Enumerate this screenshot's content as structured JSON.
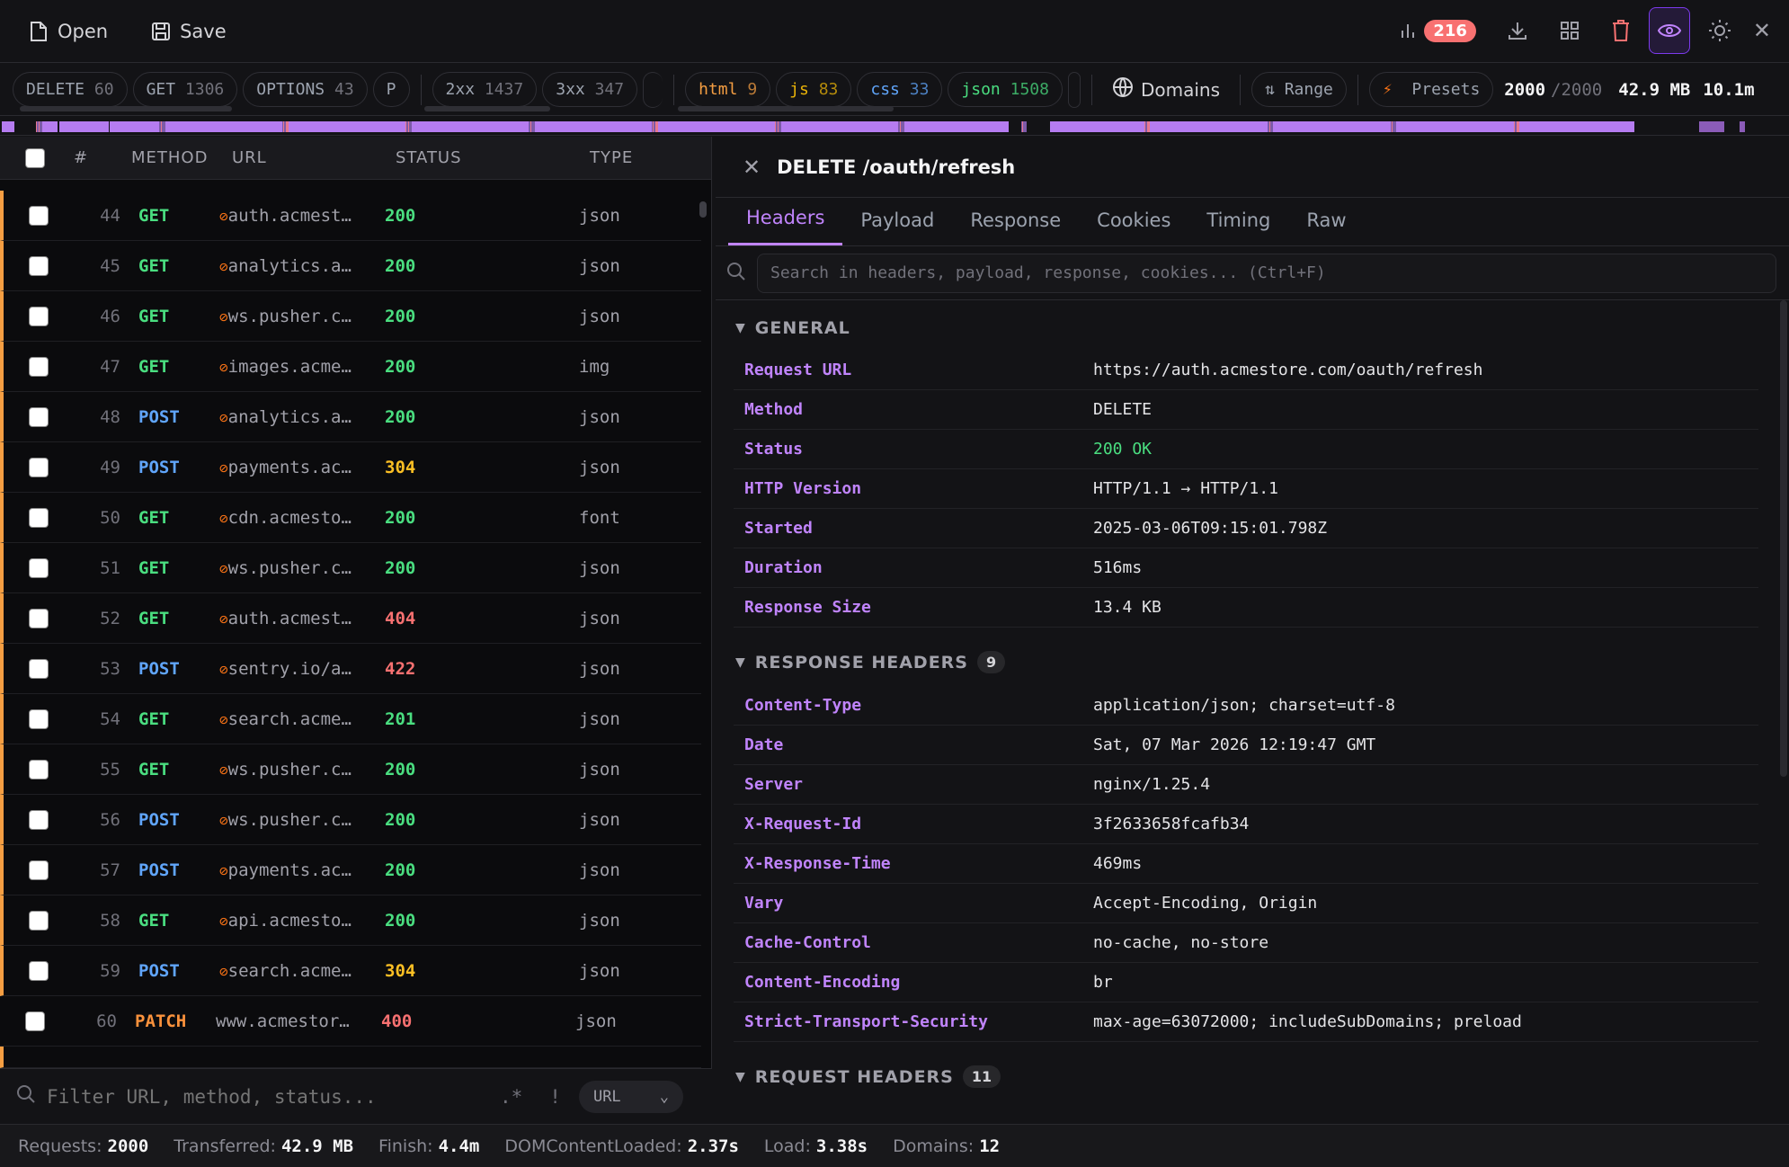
{
  "toolbar": {
    "open": "Open",
    "save": "Save",
    "error_count": "216"
  },
  "filters": {
    "methods": [
      {
        "label": "DELETE",
        "count": "60"
      },
      {
        "label": "GET",
        "count": "1306"
      },
      {
        "label": "OPTIONS",
        "count": "43"
      },
      {
        "label": "P",
        "count": ""
      }
    ],
    "statuses": [
      {
        "label": "2xx",
        "count": "1437"
      },
      {
        "label": "3xx",
        "count": "347"
      }
    ],
    "types": [
      {
        "label": "html",
        "count": "9",
        "color": "#f59e42"
      },
      {
        "label": "js",
        "count": "83",
        "color": "#eab308"
      },
      {
        "label": "css",
        "count": "33",
        "color": "#60a5fa"
      },
      {
        "label": "json",
        "count": "1508",
        "color": "#4ade80"
      }
    ],
    "domains": "Domains",
    "range": "Range",
    "presets": "Presets",
    "shown": "2000",
    "total": "/2000",
    "size": "42.9 MB",
    "time": "10.1m"
  },
  "table": {
    "headers": {
      "num": "#",
      "method": "METHOD",
      "url": "URL",
      "status": "STATUS",
      "type": "TYPE"
    },
    "rows": [
      {
        "num": "44",
        "method": "GET",
        "url": "auth.acmest…",
        "status": "200",
        "type": "json",
        "blocked": true
      },
      {
        "num": "45",
        "method": "GET",
        "url": "analytics.a…",
        "status": "200",
        "type": "json",
        "blocked": true
      },
      {
        "num": "46",
        "method": "GET",
        "url": "ws.pusher.c…",
        "status": "200",
        "type": "json",
        "blocked": true
      },
      {
        "num": "47",
        "method": "GET",
        "url": "images.acme…",
        "status": "200",
        "type": "img",
        "blocked": true
      },
      {
        "num": "48",
        "method": "POST",
        "url": "analytics.a…",
        "status": "200",
        "type": "json",
        "blocked": true
      },
      {
        "num": "49",
        "method": "POST",
        "url": "payments.ac…",
        "status": "304",
        "type": "json",
        "blocked": true
      },
      {
        "num": "50",
        "method": "GET",
        "url": "cdn.acmesto…",
        "status": "200",
        "type": "font",
        "blocked": true
      },
      {
        "num": "51",
        "method": "GET",
        "url": "ws.pusher.c…",
        "status": "200",
        "type": "json",
        "blocked": true
      },
      {
        "num": "52",
        "method": "GET",
        "url": "auth.acmest…",
        "status": "404",
        "type": "json",
        "blocked": true
      },
      {
        "num": "53",
        "method": "POST",
        "url": "sentry.io/a…",
        "status": "422",
        "type": "json",
        "blocked": true
      },
      {
        "num": "54",
        "method": "GET",
        "url": "search.acme…",
        "status": "201",
        "type": "json",
        "blocked": true
      },
      {
        "num": "55",
        "method": "GET",
        "url": "ws.pusher.c…",
        "status": "200",
        "type": "json",
        "blocked": true
      },
      {
        "num": "56",
        "method": "POST",
        "url": "ws.pusher.c…",
        "status": "200",
        "type": "json",
        "blocked": true
      },
      {
        "num": "57",
        "method": "POST",
        "url": "payments.ac…",
        "status": "200",
        "type": "json",
        "blocked": true
      },
      {
        "num": "58",
        "method": "GET",
        "url": "api.acmesto…",
        "status": "200",
        "type": "json",
        "blocked": true
      },
      {
        "num": "59",
        "method": "POST",
        "url": "search.acme…",
        "status": "304",
        "type": "json",
        "blocked": true
      },
      {
        "num": "60",
        "method": "PATCH",
        "url": "www.acmestor…",
        "status": "400",
        "type": "json",
        "blocked": false
      }
    ]
  },
  "filter_bar": {
    "placeholder": "Filter URL, method, status...",
    "regex": ".*",
    "invert": "!",
    "field": "URL"
  },
  "detail": {
    "title": "DELETE /oauth/refresh",
    "tabs": [
      "Headers",
      "Payload",
      "Response",
      "Cookies",
      "Timing",
      "Raw"
    ],
    "search_placeholder": "Search in headers, payload, response, cookies... (Ctrl+F)",
    "general": {
      "title": "GENERAL",
      "items": [
        {
          "k": "Request URL",
          "v": "https://auth.acmestore.com/oauth/refresh"
        },
        {
          "k": "Method",
          "v": "DELETE"
        },
        {
          "k": "Status",
          "v": "200 OK"
        },
        {
          "k": "HTTP Version",
          "v": "HTTP/1.1 → HTTP/1.1"
        },
        {
          "k": "Started",
          "v": "2025-03-06T09:15:01.798Z"
        },
        {
          "k": "Duration",
          "v": "516ms"
        },
        {
          "k": "Response Size",
          "v": "13.4 KB"
        }
      ]
    },
    "response_headers": {
      "title": "RESPONSE HEADERS",
      "count": "9",
      "items": [
        {
          "k": "Content-Type",
          "v": "application/json; charset=utf-8"
        },
        {
          "k": "Date",
          "v": "Sat, 07 Mar 2026 12:19:47 GMT"
        },
        {
          "k": "Server",
          "v": "nginx/1.25.4"
        },
        {
          "k": "X-Request-Id",
          "v": "3f2633658fcafb34"
        },
        {
          "k": "X-Response-Time",
          "v": "469ms"
        },
        {
          "k": "Vary",
          "v": "Accept-Encoding, Origin"
        },
        {
          "k": "Cache-Control",
          "v": "no-cache, no-store"
        },
        {
          "k": "Content-Encoding",
          "v": "br"
        },
        {
          "k": "Strict-Transport-Security",
          "v": "max-age=63072000; includeSubDomains; preload"
        }
      ]
    },
    "request_headers": {
      "title": "REQUEST HEADERS",
      "count": "11"
    }
  },
  "footer": [
    {
      "k": "Requests:",
      "v": "2000"
    },
    {
      "k": "Transferred:",
      "v": "42.9 MB"
    },
    {
      "k": "Finish:",
      "v": "4.4m"
    },
    {
      "k": "DOMContentLoaded:",
      "v": "2.37s"
    },
    {
      "k": "Load:",
      "v": "3.38s"
    },
    {
      "k": "Domains:",
      "v": "12"
    }
  ],
  "colors": {
    "GET": "#4ade80",
    "POST": "#60a5fa",
    "PATCH": "#fb923c",
    "DELETE": "#f87171",
    "s2xx": "#4ade80",
    "s3xx": "#fbbf24",
    "s4xx": "#f87171",
    "accent": "#c084fc"
  }
}
